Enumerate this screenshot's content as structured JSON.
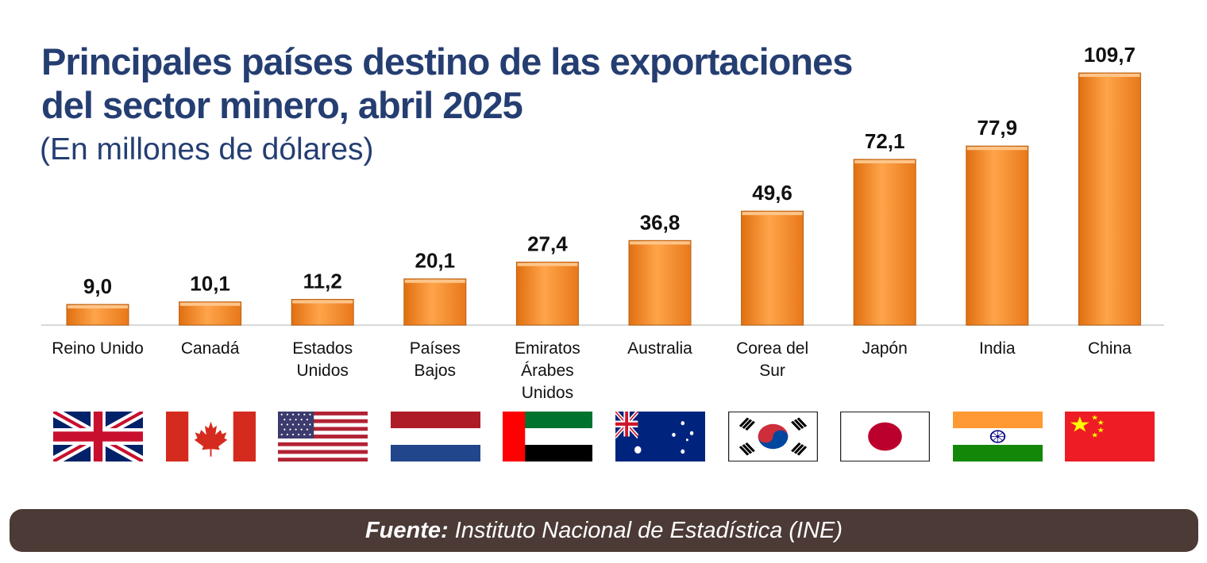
{
  "title_line1": "Principales países destino de las exportaciones",
  "title_line2": "del sector minero, abril 2025",
  "subtitle": "(En millones de dólares)",
  "footer": {
    "label": "Fuente:",
    "text": "Instituto Nacional de Estadística (INE)"
  },
  "colors": {
    "title": "#253e72",
    "bar": "#f58c27",
    "footer_bg": "#4b3a35"
  },
  "chart_data": {
    "type": "bar",
    "title": "Principales países destino de las exportaciones del sector minero, abril 2025",
    "subtitle": "(En millones de dólares)",
    "categories": [
      "Reino Unido",
      "Canadá",
      "Estados Unidos",
      "Países Bajos",
      "Emiratos Árabes Unidos",
      "Australia",
      "Corea del Sur",
      "Japón",
      "India",
      "China"
    ],
    "category_lines": [
      [
        "Reino Unido"
      ],
      [
        "Canadá"
      ],
      [
        "Estados",
        "Unidos"
      ],
      [
        "Países",
        "Bajos"
      ],
      [
        "Emiratos",
        "Árabes",
        "Unidos"
      ],
      [
        "Australia"
      ],
      [
        "Corea del",
        "Sur"
      ],
      [
        "Japón"
      ],
      [
        "India"
      ],
      [
        "China"
      ]
    ],
    "values": [
      9.0,
      10.1,
      11.2,
      20.1,
      27.4,
      36.8,
      49.6,
      72.1,
      77.9,
      109.7
    ],
    "value_labels": [
      "9,0",
      "10,1",
      "11,2",
      "20,1",
      "27,4",
      "36,8",
      "49,6",
      "72,1",
      "77,9",
      "109,7"
    ],
    "flags": [
      "uk-flag-icon",
      "canada-flag-icon",
      "usa-flag-icon",
      "netherlands-flag-icon",
      "uae-flag-icon",
      "australia-flag-icon",
      "south-korea-flag-icon",
      "japan-flag-icon",
      "india-flag-icon",
      "china-flag-icon"
    ],
    "ylim": [
      0,
      109.7
    ],
    "grid": false,
    "legend": "none"
  }
}
